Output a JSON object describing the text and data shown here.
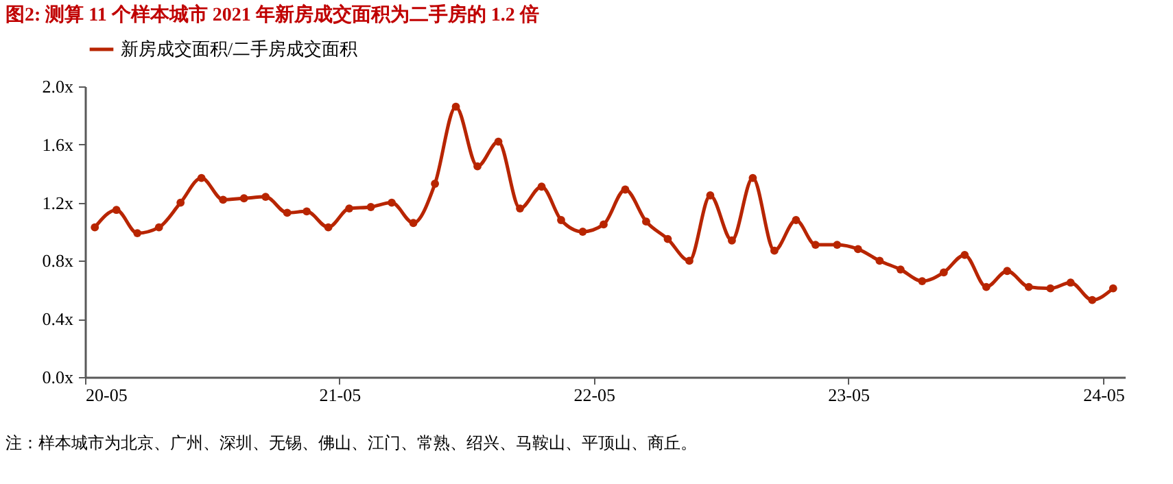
{
  "chart_data": {
    "type": "line",
    "title": "图2:   测算 11 个样本城市 2021 年新房成交面积为二手房的 1.2 倍",
    "x": [
      "2020-05-15",
      "2020-06-15",
      "2020-07-15",
      "2020-08-15",
      "2020-09-15",
      "2020-10-15",
      "2020-11-15",
      "2020-12-15",
      "2021-01-15",
      "2021-02-15",
      "2021-03-15",
      "2021-04-15",
      "2021-05-15",
      "2021-06-15",
      "2021-07-15",
      "2021-08-15",
      "2021-09-15",
      "2021-10-15",
      "2021-11-15",
      "2021-12-15",
      "2022-01-15",
      "2022-02-15",
      "2022-03-15",
      "2022-04-15",
      "2022-05-15",
      "2022-06-15",
      "2022-07-15",
      "2022-08-15",
      "2022-09-15",
      "2022-10-15",
      "2022-11-15",
      "2022-12-15",
      "2023-01-15",
      "2023-02-15",
      "2023-03-15",
      "2023-04-15",
      "2023-05-15",
      "2023-06-15",
      "2023-07-15",
      "2023-08-15",
      "2023-09-15",
      "2023-10-15",
      "2023-11-15",
      "2023-12-15",
      "2024-01-15",
      "2024-02-15",
      "2024-03-15",
      "2024-04-15",
      "2024-05-15"
    ],
    "series": [
      {
        "name": "新房成交面积/二手房成交面积",
        "color": "#b82500",
        "values": [
          1.03,
          1.15,
          0.99,
          1.03,
          1.2,
          1.37,
          1.22,
          1.23,
          1.24,
          1.13,
          1.14,
          1.03,
          1.16,
          1.17,
          1.2,
          1.06,
          1.33,
          1.86,
          1.45,
          1.62,
          1.16,
          1.31,
          1.08,
          1.0,
          1.05,
          1.29,
          1.07,
          0.95,
          0.8,
          1.25,
          0.94,
          1.37,
          0.87,
          1.08,
          0.91,
          0.91,
          0.88,
          0.8,
          0.74,
          0.66,
          0.72,
          0.84,
          0.62,
          0.73,
          0.62,
          0.61,
          0.65,
          0.53,
          0.61
        ]
      }
    ],
    "xlim": [
      "2020-05-01",
      "2024-06-01"
    ],
    "xticks": [
      {
        "value": "2020-05-01",
        "label": "20-05"
      },
      {
        "value": "2021-05-01",
        "label": "21-05"
      },
      {
        "value": "2022-05-01",
        "label": "22-05"
      },
      {
        "value": "2023-05-01",
        "label": "23-05"
      },
      {
        "value": "2024-05-01",
        "label": "24-05"
      }
    ],
    "ylim": [
      0,
      2.0
    ],
    "yticks": [
      {
        "value": 0,
        "label": "0.0x"
      },
      {
        "value": 0.4,
        "label": "0.4x"
      },
      {
        "value": 0.8,
        "label": "0.8x"
      },
      {
        "value": 1.2,
        "label": "1.2x"
      },
      {
        "value": 1.6,
        "label": "1.6x"
      },
      {
        "value": 2.0,
        "label": "2.0x"
      }
    ],
    "grid": false,
    "legend": "top",
    "marker": "circle",
    "line_style": "solid",
    "annotations": [
      "注：样本城市为北京、广州、深圳、无锡、佛山、江门、常熟、绍兴、马鞍山、平顶山、商丘。"
    ]
  }
}
